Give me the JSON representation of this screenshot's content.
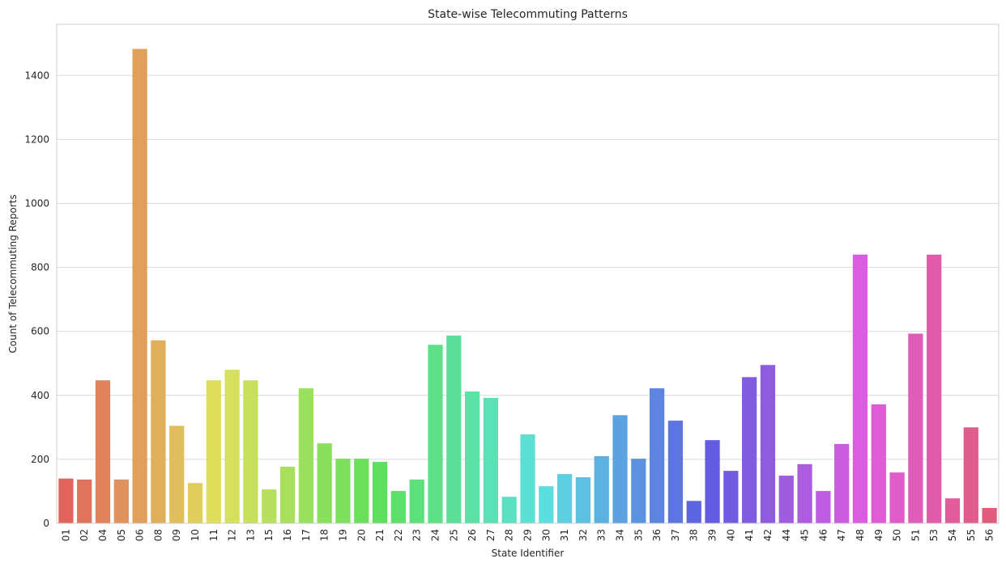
{
  "chart_data": {
    "type": "bar",
    "title": "State-wise Telecommuting Patterns",
    "xlabel": "State Identifier",
    "ylabel": "Count of Telecommuting Reports",
    "ylim": [
      0,
      1560
    ],
    "yticks": [
      0,
      200,
      400,
      600,
      800,
      1000,
      1200,
      1400
    ],
    "grid": true,
    "categories": [
      "01",
      "02",
      "04",
      "05",
      "06",
      "08",
      "09",
      "10",
      "11",
      "12",
      "13",
      "15",
      "16",
      "17",
      "18",
      "19",
      "20",
      "21",
      "22",
      "23",
      "24",
      "25",
      "26",
      "27",
      "28",
      "29",
      "30",
      "31",
      "32",
      "33",
      "34",
      "35",
      "36",
      "37",
      "38",
      "39",
      "40",
      "41",
      "42",
      "44",
      "45",
      "46",
      "47",
      "48",
      "49",
      "50",
      "51",
      "53",
      "54",
      "55",
      "56"
    ],
    "values": [
      140,
      137,
      447,
      137,
      1483,
      572,
      305,
      126,
      447,
      480,
      447,
      106,
      177,
      422,
      250,
      202,
      202,
      192,
      101,
      137,
      558,
      587,
      412,
      392,
      83,
      278,
      116,
      154,
      144,
      210,
      338,
      202,
      422,
      321,
      70,
      260,
      164,
      457,
      495,
      149,
      185,
      101,
      248,
      840,
      372,
      159,
      593,
      840,
      78,
      300,
      48
    ]
  }
}
